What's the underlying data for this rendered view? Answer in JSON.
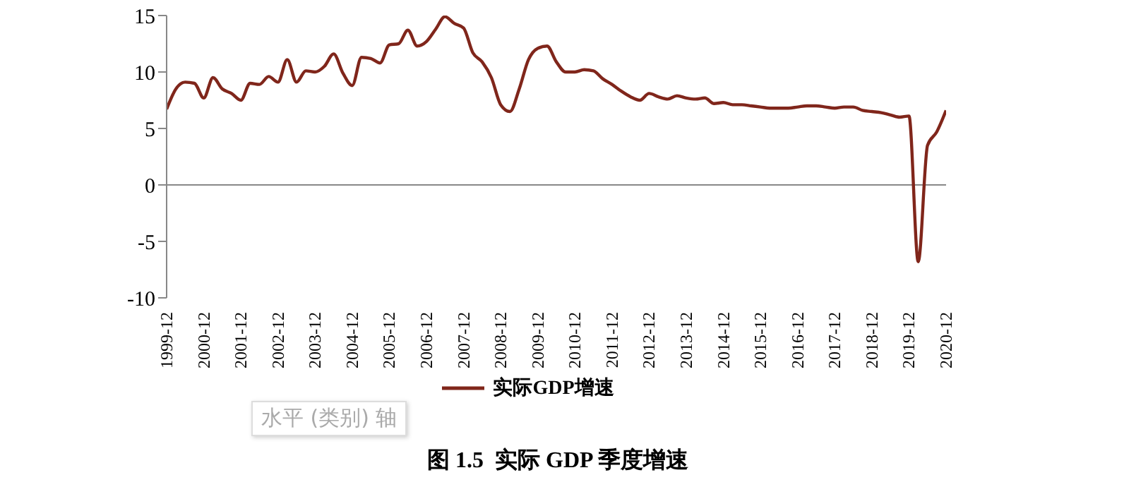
{
  "chart_data": {
    "type": "line",
    "title": "图 1.5  实际 GDP 季度增速",
    "categories": [
      "1999-12",
      null,
      null,
      null,
      "2000-12",
      null,
      null,
      null,
      "2001-12",
      null,
      null,
      null,
      "2002-12",
      null,
      null,
      null,
      "2003-12",
      null,
      null,
      null,
      "2004-12",
      null,
      null,
      null,
      "2005-12",
      null,
      null,
      null,
      "2006-12",
      null,
      null,
      null,
      "2007-12",
      null,
      null,
      null,
      "2008-12",
      null,
      null,
      null,
      "2009-12",
      null,
      null,
      null,
      "2010-12",
      null,
      null,
      null,
      "2011-12",
      null,
      null,
      null,
      "2012-12",
      null,
      null,
      null,
      "2013-12",
      null,
      null,
      null,
      "2014-12",
      null,
      null,
      null,
      "2015-12",
      null,
      null,
      null,
      "2016-12",
      null,
      null,
      null,
      "2017-12",
      null,
      null,
      null,
      "2018-12",
      null,
      null,
      null,
      "2019-12",
      null,
      null,
      null,
      "2020-12"
    ],
    "series": [
      {
        "name": "实际GDP增速",
        "color": "#80261b",
        "values": [
          6.7,
          8.5,
          9.1,
          9.0,
          7.7,
          9.5,
          8.5,
          8.1,
          7.5,
          9.0,
          8.9,
          9.6,
          9.1,
          11.1,
          9.1,
          10.1,
          10.0,
          10.5,
          11.6,
          9.9,
          8.8,
          11.3,
          11.2,
          10.8,
          12.4,
          12.5,
          13.7,
          12.3,
          12.7,
          13.8,
          14.9,
          14.3,
          13.9,
          11.7,
          10.9,
          9.5,
          7.1,
          6.5,
          8.5,
          11.1,
          12.1,
          12.3,
          10.9,
          10.0,
          10.0,
          10.2,
          10.1,
          9.4,
          8.9,
          8.3,
          7.8,
          7.5,
          8.1,
          7.8,
          7.6,
          7.9,
          7.7,
          7.6,
          7.7,
          7.2,
          7.3,
          7.1,
          7.1,
          7.0,
          6.9,
          6.8,
          6.8,
          6.8,
          6.9,
          7.0,
          7.0,
          6.9,
          6.8,
          6.9,
          6.9,
          6.6,
          6.5,
          6.4,
          6.2,
          6.0,
          6.1,
          -6.8,
          3.5,
          4.7,
          6.6
        ]
      }
    ],
    "ylim": [
      -10,
      15
    ],
    "yticks": [
      -10,
      -5,
      0,
      5,
      10,
      15
    ],
    "ref_lines": [
      {
        "axis": "y",
        "value": 0,
        "color": "#888888"
      }
    ],
    "legend": "bottom",
    "marker": "none",
    "line_style": "solid",
    "annotations": [
      "水平 (类别) 轴"
    ]
  }
}
